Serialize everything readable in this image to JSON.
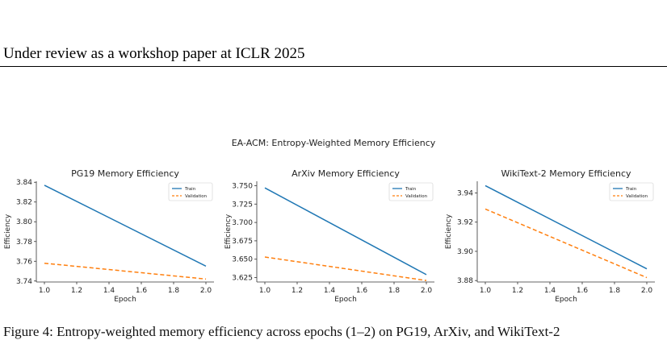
{
  "header": {
    "text": "Under review as a workshop paper at ICLR 2025"
  },
  "figure": {
    "title": "EA-ACM: Entropy-Weighted Memory Efficiency",
    "caption_fragment": "Figure 4: Entropy-weighted memory efficiency across epochs (1–2) on PG19, ArXiv, and WikiText-2"
  },
  "chart_data": [
    {
      "type": "line",
      "title": "PG19 Memory Efficiency",
      "xlabel": "Epoch",
      "ylabel": "Efficiency",
      "x": [
        1.0,
        2.0
      ],
      "xlim": [
        0.95,
        2.05
      ],
      "ylim": [
        3.739,
        3.841
      ],
      "xticks": [
        "1.0",
        "1.2",
        "1.4",
        "1.6",
        "1.8",
        "2.0"
      ],
      "yticks": [
        "3.74",
        "3.76",
        "3.78",
        "3.80",
        "3.82",
        "3.84"
      ],
      "series": [
        {
          "name": "Train",
          "values": [
            3.837,
            3.755
          ],
          "color": "#1f77b4",
          "style": "solid"
        },
        {
          "name": "Validation",
          "values": [
            3.758,
            3.742
          ],
          "color": "#ff7f0e",
          "style": "dashed"
        }
      ],
      "legend": "top-right",
      "grid": false
    },
    {
      "type": "line",
      "title": "ArXiv Memory Efficiency",
      "xlabel": "Epoch",
      "ylabel": "Efficiency",
      "x": [
        1.0,
        2.0
      ],
      "xlim": [
        0.95,
        2.05
      ],
      "ylim": [
        3.619,
        3.756
      ],
      "xticks": [
        "1.0",
        "1.2",
        "1.4",
        "1.6",
        "1.8",
        "2.0"
      ],
      "yticks": [
        "3.625",
        "3.650",
        "3.675",
        "3.700",
        "3.725",
        "3.750"
      ],
      "series": [
        {
          "name": "Train",
          "values": [
            3.747,
            3.629
          ],
          "color": "#1f77b4",
          "style": "solid"
        },
        {
          "name": "Validation",
          "values": [
            3.653,
            3.621
          ],
          "color": "#ff7f0e",
          "style": "dashed"
        }
      ],
      "legend": "top-right",
      "grid": false
    },
    {
      "type": "line",
      "title": "WikiText-2 Memory Efficiency",
      "xlabel": "Epoch",
      "ylabel": "Efficiency",
      "x": [
        1.0,
        2.0
      ],
      "xlim": [
        0.95,
        2.05
      ],
      "ylim": [
        3.879,
        3.948
      ],
      "xticks": [
        "1.0",
        "1.2",
        "1.4",
        "1.6",
        "1.8",
        "2.0"
      ],
      "yticks": [
        "3.88",
        "3.90",
        "3.92",
        "3.94"
      ],
      "series": [
        {
          "name": "Train",
          "values": [
            3.945,
            3.888
          ],
          "color": "#1f77b4",
          "style": "solid"
        },
        {
          "name": "Validation",
          "values": [
            3.929,
            3.882
          ],
          "color": "#ff7f0e",
          "style": "dashed"
        }
      ],
      "legend": "top-right",
      "grid": false
    }
  ]
}
